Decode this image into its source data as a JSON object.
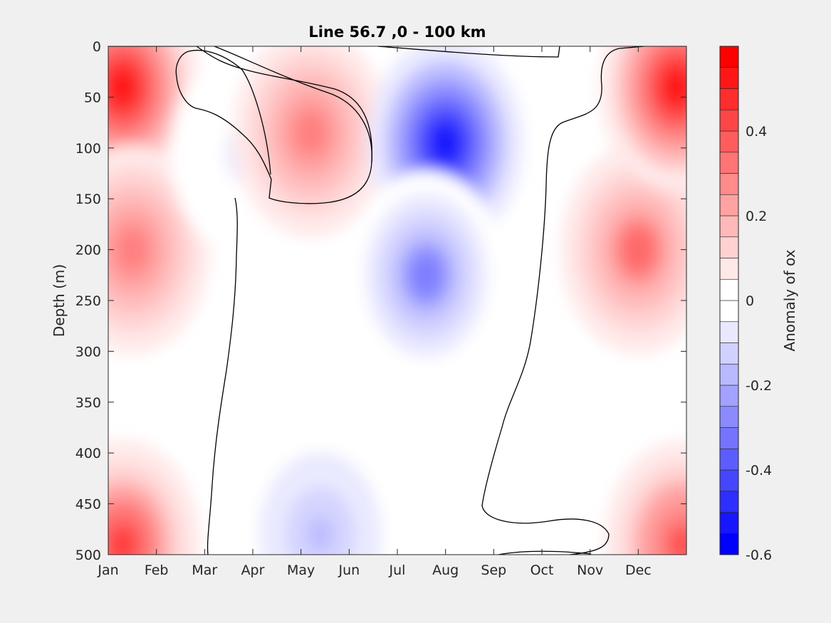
{
  "chart_data": {
    "type": "heatmap",
    "subtype": "filled-contour",
    "title": "Line 56.7 ,0 - 100 km",
    "xlabel": "",
    "ylabel": "Depth (m)",
    "x_tick_labels": [
      "Jan",
      "Feb",
      "Mar",
      "Apr",
      "May",
      "Jun",
      "Jul",
      "Aug",
      "Sep",
      "Oct",
      "Nov",
      "Dec"
    ],
    "x_ticks": [
      1,
      2,
      3,
      4,
      5,
      6,
      7,
      8,
      9,
      10,
      11,
      12
    ],
    "xlim": [
      1,
      13
    ],
    "y_ticks": [
      0,
      50,
      100,
      150,
      200,
      250,
      300,
      350,
      400,
      450,
      500
    ],
    "y_tick_labels": [
      "0",
      "50",
      "100",
      "150",
      "200",
      "250",
      "300",
      "350",
      "400",
      "450",
      "500"
    ],
    "ylim": [
      0,
      500
    ],
    "y_reversed": true,
    "grid": false,
    "zero_contour_line": true,
    "colorbar": {
      "label": "Anomaly of ox",
      "range": [
        -0.6,
        0.6
      ],
      "level_step": 0.05,
      "tick_values": [
        -0.6,
        -0.4,
        -0.2,
        0,
        0.2,
        0.4
      ],
      "tick_labels": [
        "-0.6",
        "-0.4",
        "-0.2",
        "0",
        "0.2",
        "0.4"
      ],
      "max_color": "#ff0000",
      "min_color": "#0000ff",
      "zero_color": "#ffffff",
      "placement": "right"
    },
    "anomaly_centers": [
      {
        "month": 1.3,
        "depth_m": 40,
        "value": 0.58
      },
      {
        "month": 1.5,
        "depth_m": 200,
        "value": 0.35
      },
      {
        "month": 1.3,
        "depth_m": 490,
        "value": 0.45
      },
      {
        "month": 3.9,
        "depth_m": 105,
        "value": -0.07
      },
      {
        "month": 5.2,
        "depth_m": 85,
        "value": 0.32
      },
      {
        "month": 5.4,
        "depth_m": 480,
        "value": -0.18
      },
      {
        "month": 8.0,
        "depth_m": 95,
        "value": -0.58
      },
      {
        "month": 7.6,
        "depth_m": 225,
        "value": -0.3
      },
      {
        "month": 12.0,
        "depth_m": 200,
        "value": 0.36
      },
      {
        "month": 12.8,
        "depth_m": 40,
        "value": 0.55
      },
      {
        "month": 12.9,
        "depth_m": 490,
        "value": 0.42
      }
    ]
  }
}
